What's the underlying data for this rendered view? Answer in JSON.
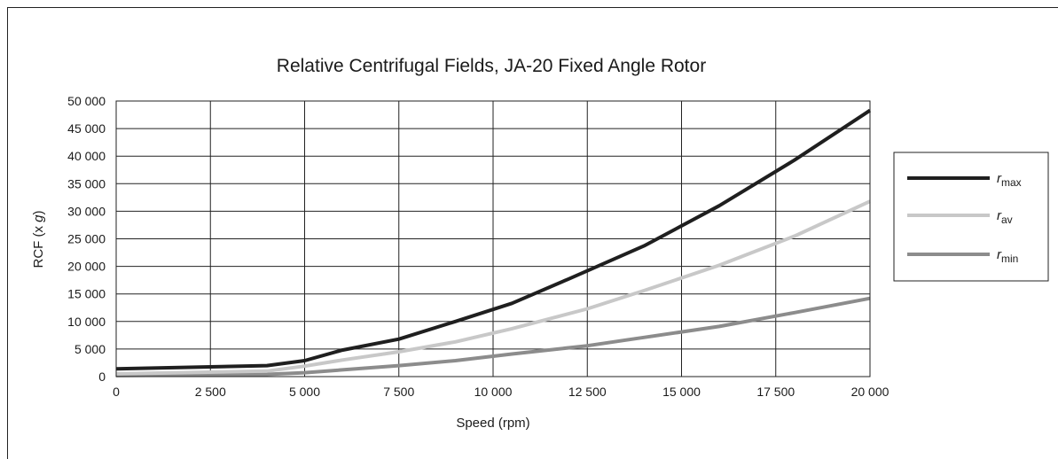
{
  "chart_data": {
    "type": "line",
    "title": "Relative Centrifugal Fields, JA-20 Fixed Angle Rotor",
    "xlabel": "Speed (rpm)",
    "ylabel_main": "RCF (x ",
    "ylabel_italic": "g",
    "ylabel_end": ")",
    "xlim": [
      0,
      20000
    ],
    "ylim": [
      0,
      50000
    ],
    "grid": true,
    "legend_position": "right",
    "x_ticks": [
      "0",
      "2 500",
      "5 000",
      "7 500",
      "10 000",
      "12 500",
      "15 000",
      "17 500",
      "20 000"
    ],
    "x_tick_values": [
      0,
      2500,
      5000,
      7500,
      10000,
      12500,
      15000,
      17500,
      20000
    ],
    "y_ticks": [
      "0",
      "5 000",
      "10 000",
      "15 000",
      "20 000",
      "25 000",
      "30 000",
      "35 000",
      "40 000",
      "45 000",
      "50 000"
    ],
    "y_tick_values": [
      0,
      5000,
      10000,
      15000,
      20000,
      25000,
      30000,
      35000,
      40000,
      45000,
      50000
    ],
    "series": [
      {
        "name": "r",
        "subscript": "max",
        "color": "#1f1f1f",
        "x": [
          0,
          4000,
          5000,
          6000,
          7500,
          9000,
          10500,
          12000,
          14000,
          16000,
          18000,
          20000
        ],
        "y": [
          1400,
          2000,
          2900,
          4800,
          6800,
          10000,
          13300,
          17700,
          23700,
          31000,
          39300,
          48300
        ]
      },
      {
        "name": "r",
        "subscript": "av",
        "color": "#c8c8c8",
        "x": [
          0,
          4000,
          5000,
          6000,
          7500,
          9000,
          10500,
          12500,
          14000,
          16000,
          18000,
          20000
        ],
        "y": [
          500,
          1000,
          1900,
          3000,
          4500,
          6300,
          8700,
          12300,
          15600,
          20200,
          25500,
          31800
        ]
      },
      {
        "name": "r",
        "subscript": "min",
        "color": "#8c8c8c",
        "x": [
          0,
          4000,
          5000,
          7500,
          9000,
          10500,
          12500,
          14000,
          16000,
          18000,
          20000
        ],
        "y": [
          200,
          400,
          700,
          2000,
          2900,
          4100,
          5600,
          7100,
          9100,
          11600,
          14200
        ]
      }
    ]
  }
}
